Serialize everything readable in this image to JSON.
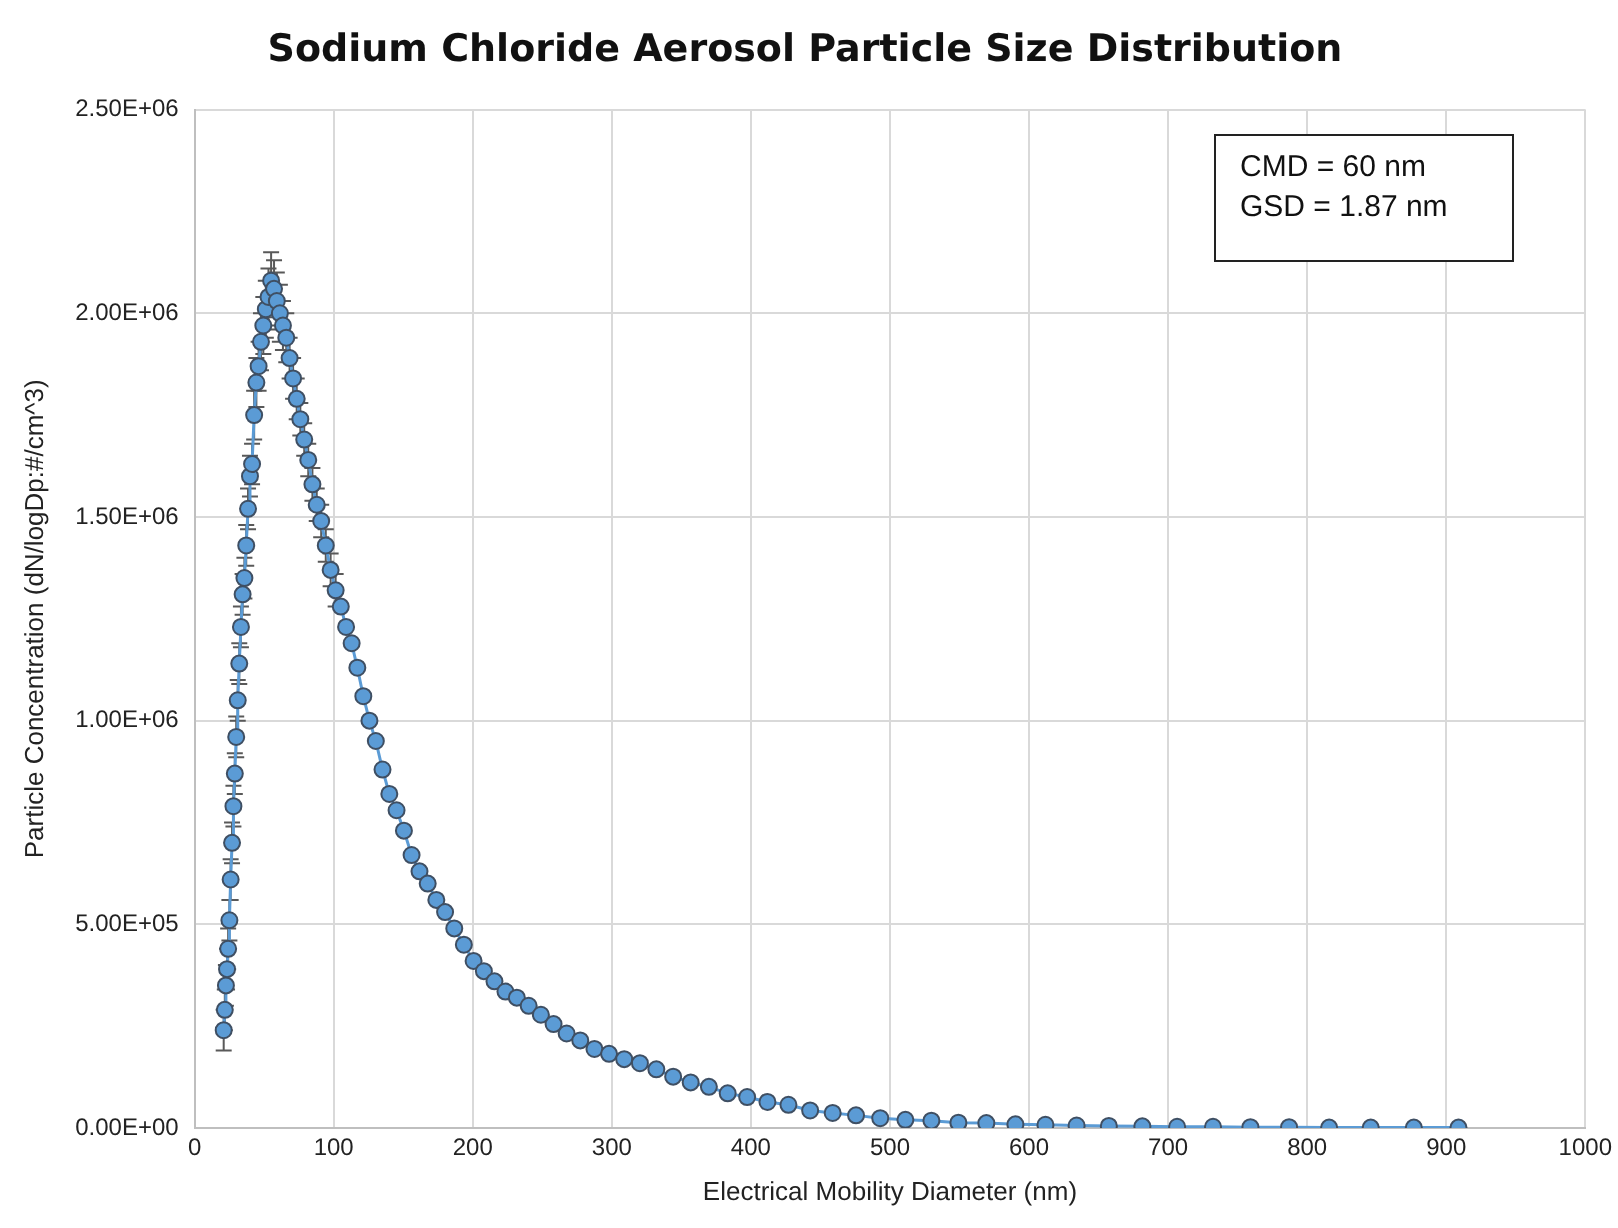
{
  "chart_data": {
    "type": "line",
    "title": "Sodium Chloride Aerosol Particle Size Distribution",
    "xlabel": "Electrical Mobility Diameter (nm)",
    "ylabel": "Particle Concentration (dN/logDp:#/cm^3)",
    "annotations": [
      "CMD = 60 nm",
      "GSD = 1.87 nm"
    ],
    "x": [
      20.9,
      21.7,
      22.5,
      23.3,
      24.1,
      25.0,
      25.9,
      26.9,
      27.9,
      28.9,
      29.9,
      31.0,
      32.1,
      33.3,
      34.5,
      35.8,
      37.1,
      38.4,
      39.8,
      41.3,
      42.8,
      44.4,
      46.0,
      47.7,
      49.4,
      51.2,
      53.1,
      55.0,
      57.1,
      59.1,
      61.3,
      63.5,
      65.9,
      68.3,
      70.8,
      73.4,
      76.0,
      78.8,
      81.7,
      84.7,
      87.8,
      91.0,
      94.3,
      97.8,
      101.4,
      105.1,
      108.9,
      112.9,
      117.0,
      121.3,
      125.7,
      130.3,
      135.1,
      140.0,
      145.2,
      150.5,
      156.0,
      161.7,
      167.6,
      173.8,
      180.1,
      186.7,
      193.6,
      200.6,
      208.0,
      215.6,
      223.5,
      231.7,
      240.2,
      249.0,
      258.1,
      267.5,
      277.3,
      287.5,
      298.0,
      308.9,
      320.2,
      332.0,
      344.1,
      356.7,
      369.8,
      383.3,
      397.3,
      411.9,
      427.0,
      442.6,
      458.8,
      475.6,
      493.0,
      511.1,
      529.8,
      549.2,
      569.3,
      590.2,
      611.8,
      634.2,
      657.4,
      681.5,
      706.5,
      732.3,
      759.2,
      787.0,
      815.8,
      845.7,
      876.7,
      908.8
    ],
    "series": [
      {
        "color": "#5b9bd5",
        "values": [
          240000,
          290000,
          350000,
          390000,
          440000,
          510000,
          610000,
          700000,
          790000,
          870000,
          960000,
          1050000,
          1140000,
          1230000,
          1310000,
          1350000,
          1430000,
          1520000,
          1600000,
          1630000,
          1750000,
          1830000,
          1870000,
          1930000,
          1970000,
          2010000,
          2040000,
          2080000,
          2060000,
          2030000,
          2000000,
          1970000,
          1940000,
          1890000,
          1840000,
          1790000,
          1740000,
          1690000,
          1640000,
          1580000,
          1530000,
          1490000,
          1430000,
          1370000,
          1320000,
          1280000,
          1230000,
          1190000,
          1130000,
          1060000,
          1000000,
          950000,
          880000,
          820000,
          780000,
          730000,
          670000,
          630000,
          600000,
          560000,
          530000,
          490000,
          450000,
          410000,
          385000,
          360000,
          335000,
          320000,
          300000,
          278000,
          255000,
          232000,
          215000,
          194000,
          182000,
          169000,
          159000,
          144000,
          126000,
          112000,
          101000,
          85000,
          76000,
          64000,
          57000,
          43000,
          37000,
          31000,
          24000,
          20000,
          18000,
          13000,
          12000,
          9000,
          8000,
          6000,
          5000,
          4000,
          3000,
          3000,
          2000,
          2000,
          1000,
          1000,
          1000,
          1000
        ],
        "errors": [
          50000,
          50000,
          50000,
          50000,
          50000,
          50000,
          50000,
          50000,
          50000,
          50000,
          50000,
          50000,
          50000,
          50000,
          50000,
          50000,
          50000,
          50000,
          50000,
          50000,
          60000,
          60000,
          60000,
          70000,
          70000,
          70000,
          70000,
          70000,
          70000,
          70000,
          70000,
          60000,
          60000,
          50000,
          50000,
          50000,
          40000,
          40000,
          40000,
          40000,
          40000,
          40000,
          40000,
          40000,
          40000,
          null,
          null,
          null,
          null,
          null,
          null,
          null,
          null,
          null,
          null,
          null,
          null,
          null,
          null,
          null,
          null,
          null,
          null,
          null,
          null,
          null,
          null,
          null,
          null,
          null,
          null,
          null,
          null,
          null,
          null,
          null,
          null,
          null,
          null,
          null,
          null,
          null,
          null,
          null,
          null,
          null,
          null,
          null,
          null,
          null,
          null,
          null,
          null,
          null,
          null,
          null,
          null,
          null,
          null,
          null,
          null,
          null,
          null,
          null,
          null,
          null
        ]
      }
    ],
    "xlim": [
      0,
      1000
    ],
    "xticks": [
      0,
      100,
      200,
      300,
      400,
      500,
      600,
      700,
      800,
      900,
      1000
    ],
    "ylim": [
      0,
      2500000
    ],
    "yticks": [
      {
        "value": 0,
        "label": "0.00E+00"
      },
      {
        "value": 500000,
        "label": "5.00E+05"
      },
      {
        "value": 1000000,
        "label": "1.00E+06"
      },
      {
        "value": 1500000,
        "label": "1.50E+06"
      },
      {
        "value": 2000000,
        "label": "2.00E+06"
      },
      {
        "value": 2500000,
        "label": "2.50E+06"
      }
    ],
    "grid": true,
    "legend": false,
    "marker": "circle",
    "line_style": "solid"
  }
}
